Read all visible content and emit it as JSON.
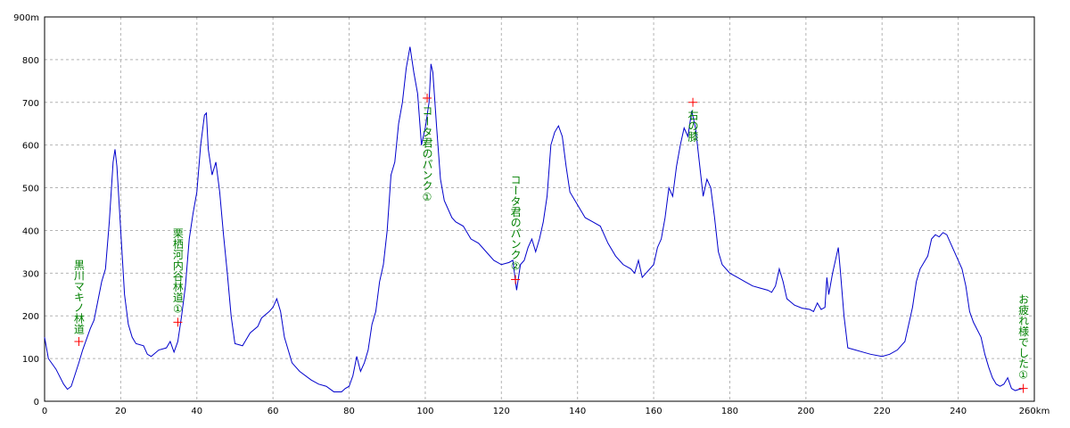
{
  "chart_data": {
    "type": "line",
    "x": [
      0,
      1,
      3,
      5,
      6,
      7,
      9,
      10,
      12,
      13,
      15,
      16,
      17,
      18,
      18.5,
      19,
      20,
      21,
      22,
      23,
      24,
      26,
      27,
      28,
      30,
      32,
      33,
      34,
      35,
      36,
      37,
      38,
      39,
      40,
      41,
      42,
      42.5,
      43,
      44,
      45,
      46,
      47,
      48,
      49,
      50,
      52,
      54,
      56,
      57,
      59,
      60,
      61,
      62,
      63,
      65,
      67,
      70,
      72,
      74,
      76,
      78,
      79,
      80,
      81,
      82,
      83,
      84,
      85,
      86,
      87,
      88,
      89,
      90,
      91,
      92,
      93,
      94,
      95,
      96,
      97,
      98,
      99,
      100,
      101,
      101.5,
      102,
      103,
      104,
      105,
      106,
      107,
      108,
      110,
      112,
      114,
      116,
      118,
      120,
      122,
      123,
      124,
      125,
      126,
      127,
      128,
      129,
      130,
      131,
      132,
      133,
      134,
      135,
      136,
      137,
      138,
      140,
      142,
      144,
      146,
      148,
      150,
      152,
      154,
      155,
      156,
      157,
      158,
      160,
      161,
      162,
      163,
      164,
      165,
      166,
      167,
      168,
      169,
      170,
      171,
      172,
      173,
      174,
      175,
      176,
      177,
      178,
      180,
      182,
      184,
      186,
      188,
      190,
      191,
      192,
      193,
      194,
      195,
      197,
      199,
      201,
      202,
      203,
      204,
      205,
      205.5,
      206,
      207,
      208,
      208.5,
      209,
      210,
      211,
      213,
      215,
      217,
      220,
      222,
      224,
      226,
      228,
      229,
      230,
      232,
      233,
      234,
      235,
      236,
      237,
      238,
      240,
      241,
      242,
      243,
      244,
      246,
      247,
      248,
      249,
      250,
      251,
      252,
      253,
      254,
      255,
      256,
      257
    ],
    "series": [
      {
        "color": "#0000cc",
        "values": [
          150,
          100,
          75,
          40,
          28,
          35,
          90,
          120,
          170,
          190,
          280,
          310,
          420,
          560,
          590,
          550,
          400,
          250,
          180,
          150,
          135,
          130,
          110,
          105,
          120,
          125,
          140,
          115,
          140,
          200,
          270,
          380,
          440,
          490,
          600,
          670,
          675,
          590,
          530,
          560,
          490,
          390,
          300,
          200,
          135,
          130,
          160,
          175,
          195,
          210,
          220,
          240,
          210,
          150,
          90,
          70,
          50,
          40,
          35,
          22,
          22,
          30,
          35,
          60,
          105,
          70,
          90,
          120,
          180,
          210,
          280,
          320,
          400,
          530,
          560,
          650,
          700,
          780,
          830,
          770,
          720,
          600,
          640,
          700,
          790,
          770,
          640,
          520,
          470,
          450,
          430,
          420,
          410,
          380,
          370,
          350,
          330,
          320,
          325,
          330,
          260,
          320,
          330,
          360,
          380,
          350,
          380,
          420,
          480,
          600,
          630,
          645,
          620,
          550,
          490,
          460,
          430,
          420,
          410,
          370,
          340,
          320,
          310,
          300,
          330,
          290,
          300,
          320,
          360,
          380,
          430,
          500,
          480,
          550,
          600,
          640,
          620,
          680,
          640,
          560,
          480,
          520,
          500,
          430,
          350,
          320,
          300,
          290,
          280,
          270,
          265,
          260,
          255,
          270,
          310,
          280,
          240,
          225,
          218,
          215,
          210,
          230,
          215,
          220,
          290,
          250,
          300,
          340,
          360,
          310,
          200,
          125,
          120,
          115,
          110,
          105,
          110,
          120,
          140,
          220,
          280,
          310,
          340,
          380,
          390,
          385,
          395,
          390,
          370,
          330,
          310,
          270,
          210,
          185,
          150,
          110,
          80,
          55,
          40,
          35,
          40,
          55,
          30,
          25,
          28,
          30
        ]
      }
    ],
    "xlim": [
      0,
      260
    ],
    "ylim": [
      0,
      900
    ],
    "xticks": [
      0,
      20,
      40,
      60,
      80,
      100,
      120,
      140,
      160,
      180,
      200,
      220,
      240,
      {
        "value": 260,
        "label": "260km"
      }
    ],
    "yticks": [
      0,
      100,
      200,
      300,
      400,
      500,
      600,
      700,
      800,
      {
        "value": 900,
        "label": "900m"
      }
    ],
    "grid": true,
    "annotations": [
      {
        "label": "黒川マキノ林道",
        "x": 9,
        "y": 140
      },
      {
        "label": "栗栖河内谷林道①",
        "x": 35,
        "y": 185
      },
      {
        "label": "コータ君のパンク①",
        "x": 100.5,
        "y": 710
      },
      {
        "label": "コータ君のパンク②",
        "x": 123.7,
        "y": 285
      },
      {
        "label": "右の膝",
        "x": 170.3,
        "y": 700
      },
      {
        "label": "お疲れ様でした①",
        "x": 257.1,
        "y": 30
      }
    ]
  }
}
